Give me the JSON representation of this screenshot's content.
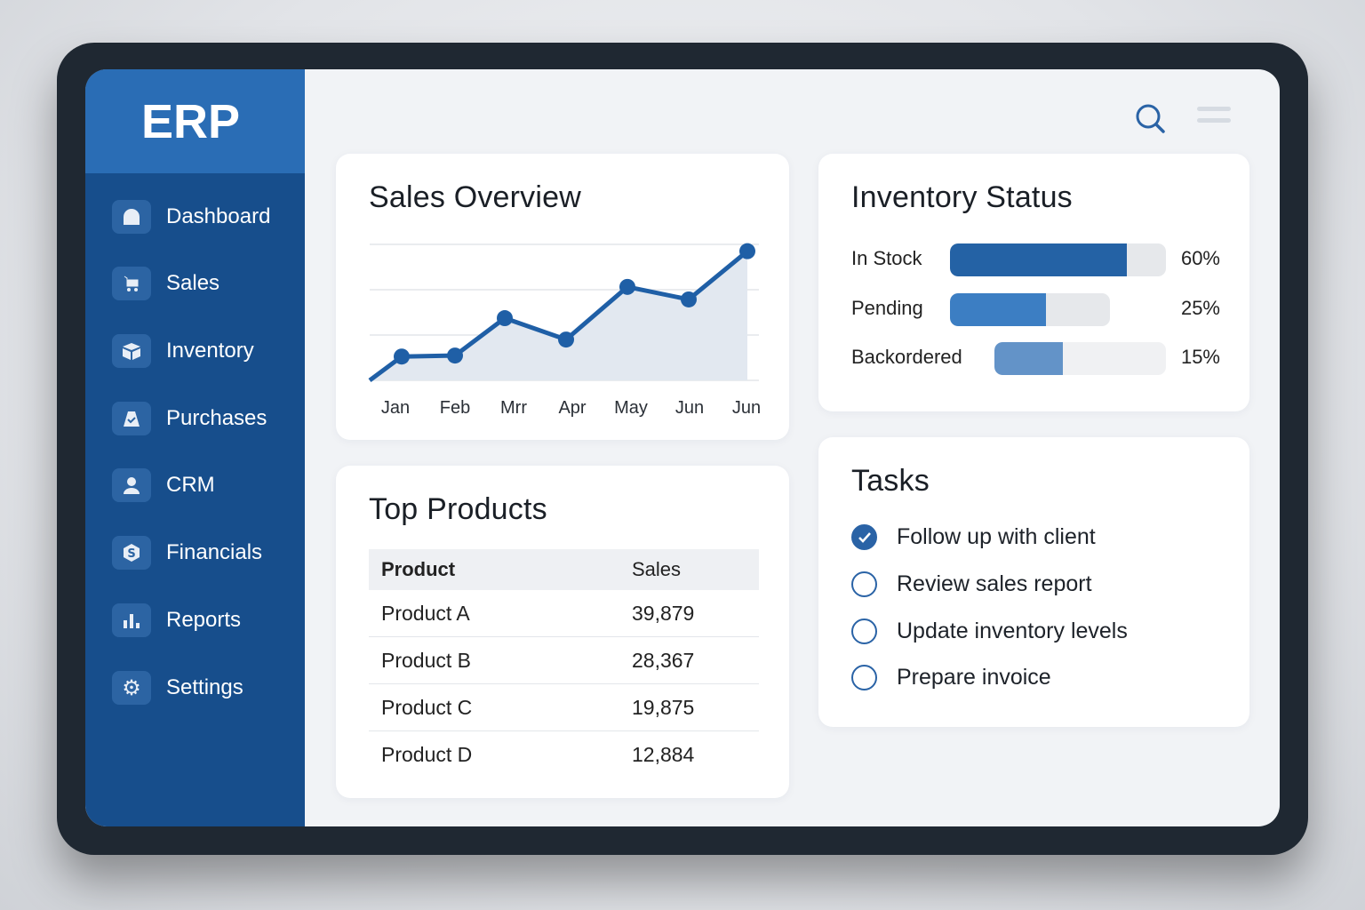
{
  "app": {
    "logo": "ERP"
  },
  "sidebar": {
    "items": [
      {
        "label": "Dashboard",
        "icon": "dashboard-icon"
      },
      {
        "label": "Sales",
        "icon": "cart-icon"
      },
      {
        "label": "Inventory",
        "icon": "box-icon"
      },
      {
        "label": "Purchases",
        "icon": "bag-icon"
      },
      {
        "label": "CRM",
        "icon": "user-icon"
      },
      {
        "label": "Financials",
        "icon": "dollar-icon"
      },
      {
        "label": "Reports",
        "icon": "bar-chart-icon"
      },
      {
        "label": "Settings",
        "icon": "gear-icon"
      }
    ]
  },
  "sales_overview": {
    "title": "Sales Overview"
  },
  "chart_data": {
    "type": "line",
    "title": "Sales Overview",
    "categories": [
      "Jan",
      "Feb",
      "Mrr",
      "Apr",
      "May",
      "Jun",
      "Jun"
    ],
    "values": [
      0.7,
      0.73,
      1.83,
      1.2,
      2.75,
      2.38,
      3.8
    ],
    "start_value": 0,
    "ylim": [
      0,
      4
    ],
    "grid": true,
    "xlabel": "",
    "ylabel": "",
    "color": "#1f5fa6"
  },
  "top_products": {
    "title": "Top Products",
    "columns": [
      "Product",
      "Sales"
    ],
    "rows": [
      [
        "Product A",
        "39,879"
      ],
      [
        "Product B",
        "28,367"
      ],
      [
        "Product C",
        "19,875"
      ],
      [
        "Product D",
        "12,884"
      ]
    ]
  },
  "inventory": {
    "title": "Inventory Status",
    "items": [
      {
        "label": "In Stock",
        "value": 60,
        "pct": "60%",
        "color": "#2462a5"
      },
      {
        "label": "Pending",
        "value": 25,
        "pct": "25%",
        "color": "#3c7ec3"
      },
      {
        "label": "Backordered",
        "value": 15,
        "pct": "15%",
        "color": "#6393c8"
      }
    ]
  },
  "tasks": {
    "title": "Tasks",
    "items": [
      {
        "label": "Follow up with client",
        "done": true
      },
      {
        "label": "Review sales report",
        "done": false
      },
      {
        "label": "Update inventory levels",
        "done": false
      },
      {
        "label": "Prepare invoice",
        "done": false
      }
    ]
  }
}
